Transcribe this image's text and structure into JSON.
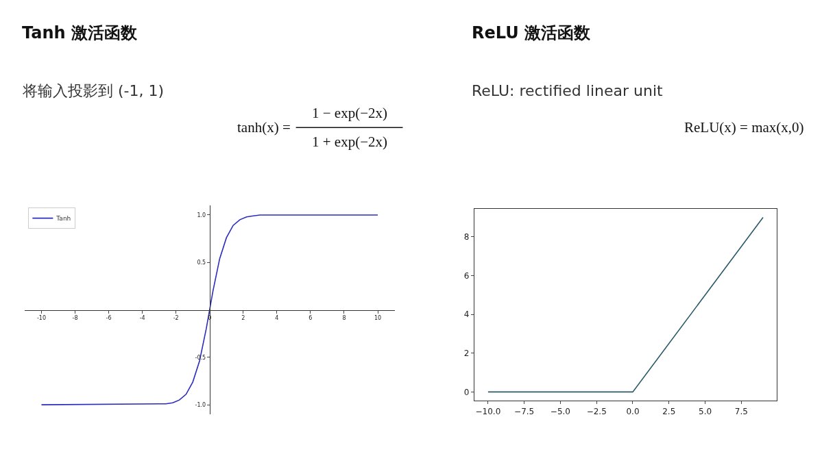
{
  "chart_data": [
    {
      "type": "line",
      "title": "Tanh 激活函数",
      "subtitle": "将输入投影到 (-1, 1)",
      "annotations": [
        "tanh(x) =",
        "1 − exp(−2x)",
        "1 + exp(−2x)"
      ],
      "x": [
        -10,
        -3,
        -2.6,
        -2.2,
        -1.8,
        -1.4,
        -1,
        -0.6,
        -0.2,
        0.2,
        0.6,
        1,
        1.4,
        1.8,
        2.2,
        2.6,
        3,
        4,
        10
      ],
      "series": [
        {
          "name": "Tanh",
          "color": "#2b2bbf",
          "values": [
            -1,
            -0.99,
            -0.99,
            -0.98,
            -0.95,
            -0.89,
            -0.76,
            -0.54,
            -0.2,
            0.2,
            0.54,
            0.76,
            0.89,
            0.95,
            0.98,
            0.99,
            1,
            1,
            1
          ]
        }
      ],
      "xlim": [
        -11,
        11
      ],
      "ylim": [
        -1.1,
        1.1
      ],
      "xticks": [
        -10,
        -8,
        -6,
        -4,
        -2,
        0,
        2,
        4,
        6,
        8,
        10
      ],
      "yticks": [
        {
          "value": -1,
          "label": "-1.0"
        },
        {
          "value": -0.5,
          "label": "-0.5"
        },
        {
          "value": 0.5,
          "label": "0.5"
        },
        {
          "value": 1,
          "label": "1.0"
        }
      ],
      "legend": "top left"
    },
    {
      "type": "line",
      "title": "ReLU 激活函数",
      "subtitle": "ReLU: rectified linear unit",
      "annotations": [
        "ReLU(x) = max(x,0)"
      ],
      "x": [
        -10,
        0,
        9
      ],
      "series": [
        {
          "color": "#2a5a6a",
          "values": [
            0,
            0,
            9
          ]
        }
      ],
      "xlim": [
        -10.95,
        9.95
      ],
      "ylim": [
        -0.45,
        9.45
      ],
      "xticks": [
        {
          "value": -10,
          "label": "−10.0"
        },
        {
          "value": -7.5,
          "label": "−7.5"
        },
        {
          "value": -5,
          "label": "−5.0"
        },
        {
          "value": -2.5,
          "label": "−2.5"
        },
        {
          "value": 0,
          "label": "0.0"
        },
        {
          "value": 2.5,
          "label": "2.5"
        },
        {
          "value": 5,
          "label": "5.0"
        },
        {
          "value": 7.5,
          "label": "7.5"
        }
      ],
      "yticks": [
        0,
        2,
        4,
        6,
        8
      ],
      "legend": false
    }
  ]
}
